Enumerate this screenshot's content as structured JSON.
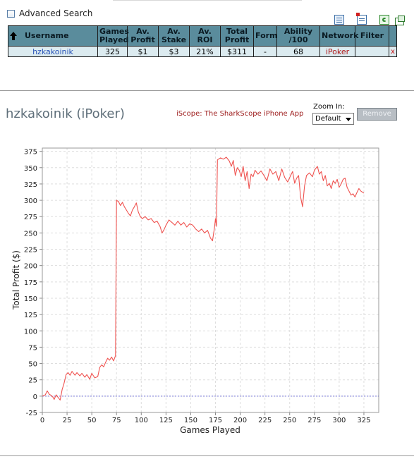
{
  "advanced_search": {
    "label": "Advanced Search"
  },
  "table": {
    "headers": [
      "Username",
      "Games Played",
      "Av. Profit",
      "Av. Stake",
      "Av. ROI",
      "Total Profit",
      "Form",
      "Ability /100",
      "Network",
      "Filter",
      ""
    ],
    "row": {
      "username": "hzkakoinik",
      "games_played": "325",
      "av_profit": "$1",
      "av_stake": "$3",
      "av_roi": "21%",
      "total_profit": "$311",
      "form": "-",
      "ability": "68",
      "network": "iPoker",
      "filter": "",
      "remove": "x"
    }
  },
  "player_title": "hzkakoinik (iPoker)",
  "iscope_link": "iScope: The SharkScope iPhone App",
  "zoom": {
    "label": "Zoom In:",
    "selected": "Default"
  },
  "remove_button": "Remove",
  "icons": [
    "export-icon",
    "table-icon",
    "refresh-icon",
    "popout-icon"
  ],
  "colors": {
    "header_bg": "#5a8c9c",
    "row_bg": "#dcebf0",
    "line": "#ef5350",
    "zero_line": "#6f6fd8",
    "link": "#2a54b8",
    "network": "#b01818"
  },
  "chart_data": {
    "type": "line",
    "xlabel": "Games Played",
    "ylabel": "Total Profit ($)",
    "xlim": [
      0,
      340
    ],
    "ylim": [
      -25,
      380
    ],
    "x_ticks": [
      0,
      25,
      50,
      75,
      100,
      125,
      150,
      175,
      200,
      225,
      250,
      275,
      300,
      325
    ],
    "y_ticks": [
      -25,
      0,
      25,
      50,
      75,
      100,
      125,
      150,
      175,
      200,
      225,
      250,
      275,
      300,
      325,
      350,
      375
    ],
    "grid": true,
    "zero_line": 0,
    "series": [
      {
        "points": [
          [
            0,
            0
          ],
          [
            3,
            2
          ],
          [
            5,
            8
          ],
          [
            7,
            3
          ],
          [
            9,
            1
          ],
          [
            11,
            -2
          ],
          [
            12,
            -5
          ],
          [
            14,
            2
          ],
          [
            16,
            -2
          ],
          [
            18,
            -6
          ],
          [
            20,
            10
          ],
          [
            22,
            20
          ],
          [
            24,
            33
          ],
          [
            26,
            36
          ],
          [
            28,
            32
          ],
          [
            30,
            38
          ],
          [
            33,
            32
          ],
          [
            35,
            36
          ],
          [
            38,
            31
          ],
          [
            40,
            35
          ],
          [
            43,
            29
          ],
          [
            45,
            33
          ],
          [
            48,
            26
          ],
          [
            50,
            35
          ],
          [
            53,
            28
          ],
          [
            56,
            30
          ],
          [
            58,
            44
          ],
          [
            60,
            48
          ],
          [
            62,
            45
          ],
          [
            64,
            52
          ],
          [
            66,
            58
          ],
          [
            68,
            55
          ],
          [
            70,
            60
          ],
          [
            72,
            54
          ],
          [
            74,
            62
          ],
          [
            75,
            300
          ],
          [
            77,
            298
          ],
          [
            79,
            292
          ],
          [
            81,
            297
          ],
          [
            83,
            290
          ],
          [
            85,
            285
          ],
          [
            87,
            280
          ],
          [
            89,
            276
          ],
          [
            91,
            285
          ],
          [
            93,
            290
          ],
          [
            95,
            296
          ],
          [
            97,
            282
          ],
          [
            99,
            275
          ],
          [
            101,
            272
          ],
          [
            104,
            275
          ],
          [
            107,
            270
          ],
          [
            110,
            272
          ],
          [
            113,
            266
          ],
          [
            116,
            268
          ],
          [
            119,
            260
          ],
          [
            121,
            250
          ],
          [
            123,
            255
          ],
          [
            125,
            262
          ],
          [
            128,
            270
          ],
          [
            131,
            266
          ],
          [
            134,
            262
          ],
          [
            137,
            268
          ],
          [
            140,
            262
          ],
          [
            143,
            266
          ],
          [
            146,
            259
          ],
          [
            149,
            264
          ],
          [
            152,
            262
          ],
          [
            155,
            256
          ],
          [
            158,
            252
          ],
          [
            161,
            256
          ],
          [
            164,
            250
          ],
          [
            167,
            254
          ],
          [
            169,
            246
          ],
          [
            170,
            242
          ],
          [
            172,
            238
          ],
          [
            173,
            248
          ],
          [
            174,
            258
          ],
          [
            175,
            272
          ],
          [
            176,
            260
          ],
          [
            177,
            362
          ],
          [
            180,
            365
          ],
          [
            183,
            363
          ],
          [
            186,
            366
          ],
          [
            189,
            360
          ],
          [
            191,
            352
          ],
          [
            193,
            361
          ],
          [
            195,
            338
          ],
          [
            197,
            350
          ],
          [
            199,
            346
          ],
          [
            201,
            336
          ],
          [
            203,
            352
          ],
          [
            205,
            330
          ],
          [
            207,
            344
          ],
          [
            209,
            318
          ],
          [
            211,
            340
          ],
          [
            213,
            336
          ],
          [
            215,
            346
          ],
          [
            218,
            340
          ],
          [
            221,
            345
          ],
          [
            224,
            338
          ],
          [
            227,
            330
          ],
          [
            230,
            348
          ],
          [
            233,
            340
          ],
          [
            236,
            344
          ],
          [
            239,
            330
          ],
          [
            242,
            348
          ],
          [
            245,
            335
          ],
          [
            248,
            328
          ],
          [
            251,
            338
          ],
          [
            253,
            344
          ],
          [
            255,
            326
          ],
          [
            257,
            334
          ],
          [
            259,
            338
          ],
          [
            261,
            305
          ],
          [
            263,
            290
          ],
          [
            265,
            322
          ],
          [
            267,
            338
          ],
          [
            270,
            342
          ],
          [
            273,
            336
          ],
          [
            275,
            346
          ],
          [
            278,
            352
          ],
          [
            280,
            340
          ],
          [
            282,
            344
          ],
          [
            284,
            330
          ],
          [
            286,
            338
          ],
          [
            288,
            322
          ],
          [
            290,
            326
          ],
          [
            292,
            318
          ],
          [
            294,
            330
          ],
          [
            296,
            326
          ],
          [
            298,
            332
          ],
          [
            300,
            320
          ],
          [
            302,
            325
          ],
          [
            304,
            332
          ],
          [
            306,
            334
          ],
          [
            308,
            320
          ],
          [
            310,
            314
          ],
          [
            312,
            308
          ],
          [
            314,
            310
          ],
          [
            316,
            305
          ],
          [
            318,
            312
          ],
          [
            320,
            318
          ],
          [
            322,
            314
          ],
          [
            325,
            311
          ]
        ]
      }
    ]
  }
}
